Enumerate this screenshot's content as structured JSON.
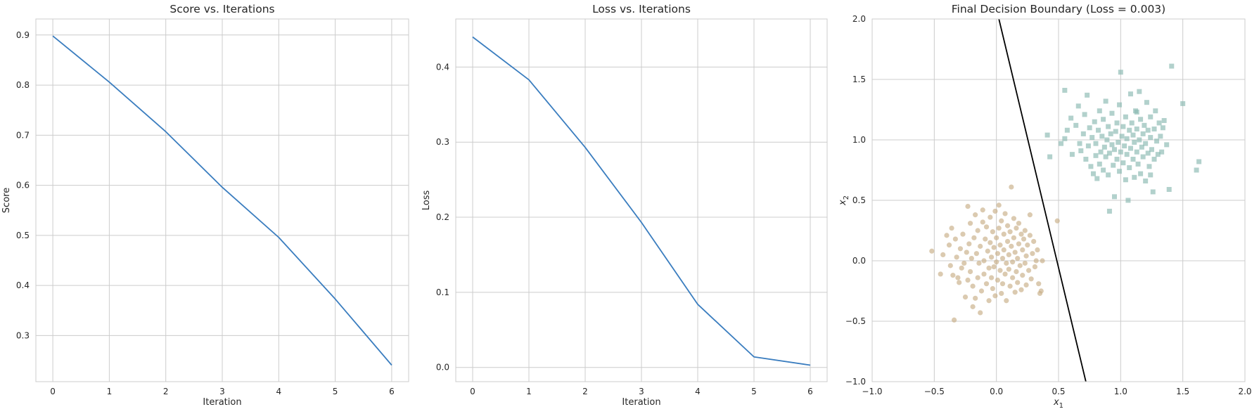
{
  "figure": {
    "background": "#ffffff",
    "grid_color": "#cccccc"
  },
  "chart_data": [
    {
      "type": "line",
      "title": "Score vs. Iterations",
      "xlabel": "Iteration",
      "ylabel": "Score",
      "grid": true,
      "xlim": [
        -0.3,
        6.3
      ],
      "ylim": [
        0.208,
        0.932
      ],
      "xticks": [
        0,
        1,
        2,
        3,
        4,
        5,
        6
      ],
      "xtick_labels": [
        "0",
        "1",
        "2",
        "3",
        "4",
        "5",
        "6"
      ],
      "yticks": [
        0.3,
        0.4,
        0.5,
        0.6,
        0.7,
        0.8,
        0.9
      ],
      "ytick_labels": [
        "0.3",
        "0.4",
        "0.5",
        "0.6",
        "0.7",
        "0.8",
        "0.9"
      ],
      "series": [
        {
          "color": "#3a7dbf",
          "x": [
            0,
            1,
            2,
            3,
            4,
            5,
            6
          ],
          "y": [
            0.898,
            0.806,
            0.707,
            0.596,
            0.496,
            0.373,
            0.241
          ]
        }
      ]
    },
    {
      "type": "line",
      "title": "Loss vs. Iterations",
      "xlabel": "Iteration",
      "ylabel": "Loss",
      "grid": true,
      "xlim": [
        -0.3,
        6.3
      ],
      "ylim": [
        -0.019,
        0.464
      ],
      "xticks": [
        0,
        1,
        2,
        3,
        4,
        5,
        6
      ],
      "xtick_labels": [
        "0",
        "1",
        "2",
        "3",
        "4",
        "5",
        "6"
      ],
      "yticks": [
        0.0,
        0.1,
        0.2,
        0.3,
        0.4
      ],
      "ytick_labels": [
        "0.0",
        "0.1",
        "0.2",
        "0.3",
        "0.4"
      ],
      "series": [
        {
          "color": "#3a7dbf",
          "x": [
            0,
            1,
            2,
            3,
            4,
            5,
            6
          ],
          "y": [
            0.44,
            0.383,
            0.293,
            0.193,
            0.084,
            0.014,
            0.003
          ]
        }
      ]
    },
    {
      "type": "scatter",
      "title": "Final Decision Boundary (Loss = 0.003)",
      "xlabel": "x",
      "xlabel_sub": "1",
      "ylabel": "x",
      "ylabel_sub": "2",
      "grid": true,
      "xlim": [
        -1.0,
        2.0
      ],
      "ylim": [
        -1.0,
        2.0
      ],
      "xticks": [
        -1.0,
        -0.5,
        0.0,
        0.5,
        1.0,
        1.5,
        2.0
      ],
      "xtick_labels": [
        "−1.0",
        "−0.5",
        "0.0",
        "0.5",
        "1.0",
        "1.5",
        "2.0"
      ],
      "yticks": [
        -1.0,
        -0.5,
        0.0,
        0.5,
        1.0,
        1.5,
        2.0
      ],
      "ytick_labels": [
        "−1.0",
        "−0.5",
        "0.0",
        "0.5",
        "1.0",
        "1.5",
        "2.0"
      ],
      "boundary": {
        "color": "#000000",
        "x": [
          0.02,
          0.72
        ],
        "y": [
          2.0,
          -1.0
        ]
      },
      "series": [
        {
          "marker": "circle",
          "color": "#c8ad86",
          "points": [
            [
              -0.52,
              0.08
            ],
            [
              -0.45,
              -0.11
            ],
            [
              -0.4,
              0.21
            ],
            [
              -0.38,
              0.13
            ],
            [
              -0.37,
              -0.04
            ],
            [
              -0.35,
              -0.12
            ],
            [
              -0.34,
              -0.49
            ],
            [
              -0.33,
              0.18
            ],
            [
              -0.32,
              0.03
            ],
            [
              -0.31,
              -0.14
            ],
            [
              -0.3,
              -0.18
            ],
            [
              -0.29,
              0.1
            ],
            [
              -0.28,
              -0.06
            ],
            [
              -0.27,
              0.22
            ],
            [
              -0.26,
              -0.02
            ],
            [
              -0.25,
              -0.3
            ],
            [
              -0.24,
              0.07
            ],
            [
              -0.23,
              -0.16
            ],
            [
              -0.23,
              0.45
            ],
            [
              -0.22,
              0.14
            ],
            [
              -0.21,
              0.31
            ],
            [
              -0.21,
              -0.09
            ],
            [
              -0.2,
              0.02
            ],
            [
              -0.19,
              -0.21
            ],
            [
              -0.18,
              0.19
            ],
            [
              -0.17,
              -0.31
            ],
            [
              -0.17,
              0.38
            ],
            [
              -0.16,
              0.06
            ],
            [
              -0.15,
              -0.14
            ],
            [
              -0.15,
              0.25
            ],
            [
              -0.14,
              -0.02
            ],
            [
              -0.13,
              -0.43
            ],
            [
              -0.13,
              0.12
            ],
            [
              -0.12,
              -0.25
            ],
            [
              -0.11,
              0.32
            ],
            [
              -0.11,
              0.42
            ],
            [
              -0.1,
              0.0
            ],
            [
              -0.1,
              -0.11
            ],
            [
              -0.09,
              0.18
            ],
            [
              -0.08,
              -0.19
            ],
            [
              -0.08,
              0.28
            ],
            [
              -0.07,
              0.08
            ],
            [
              -0.06,
              -0.06
            ],
            [
              -0.06,
              -0.33
            ],
            [
              -0.05,
              0.15
            ],
            [
              -0.05,
              0.36
            ],
            [
              -0.04,
              -0.14
            ],
            [
              -0.04,
              0.03
            ],
            [
              -0.03,
              -0.23
            ],
            [
              -0.03,
              0.24
            ],
            [
              -0.02,
              0.11
            ],
            [
              -0.02,
              -0.05
            ],
            [
              -0.01,
              0.41
            ],
            [
              -0.01,
              -0.29
            ],
            [
              0.0,
              0.19
            ],
            [
              0.0,
              -0.01
            ],
            [
              0.01,
              0.06
            ],
            [
              0.01,
              -0.16
            ],
            [
              0.02,
              0.27
            ],
            [
              0.02,
              0.46
            ],
            [
              0.03,
              -0.08
            ],
            [
              0.03,
              0.13
            ],
            [
              0.04,
              -0.27
            ],
            [
              0.04,
              0.33
            ],
            [
              0.05,
              0.02
            ],
            [
              0.05,
              -0.19
            ],
            [
              0.06,
              0.22
            ],
            [
              0.06,
              0.09
            ],
            [
              0.07,
              -0.11
            ],
            [
              0.07,
              0.39
            ],
            [
              0.08,
              -0.02
            ],
            [
              0.08,
              -0.33
            ],
            [
              0.09,
              0.16
            ],
            [
              0.09,
              0.29
            ],
            [
              0.1,
              -0.07
            ],
            [
              0.1,
              0.05
            ],
            [
              0.11,
              -0.21
            ],
            [
              0.11,
              0.24
            ],
            [
              0.12,
              0.61
            ],
            [
              0.12,
              0.12
            ],
            [
              0.13,
              -0.14
            ],
            [
              0.13,
              -0.01
            ],
            [
              0.14,
              0.35
            ],
            [
              0.14,
              0.19
            ],
            [
              0.15,
              -0.26
            ],
            [
              0.15,
              0.07
            ],
            [
              0.16,
              -0.09
            ],
            [
              0.16,
              0.27
            ],
            [
              0.17,
              0.02
            ],
            [
              0.17,
              -0.18
            ],
            [
              0.18,
              0.14
            ],
            [
              0.18,
              0.31
            ],
            [
              0.19,
              -0.04
            ],
            [
              0.2,
              0.22
            ],
            [
              0.2,
              -0.24
            ],
            [
              0.21,
              0.09
            ],
            [
              0.21,
              -0.12
            ],
            [
              0.22,
              0.18
            ],
            [
              0.23,
              -0.02
            ],
            [
              0.23,
              0.25
            ],
            [
              0.24,
              0.04
            ],
            [
              0.24,
              -0.2
            ],
            [
              0.25,
              0.13
            ],
            [
              0.26,
              -0.08
            ],
            [
              0.27,
              0.21
            ],
            [
              0.27,
              0.38
            ],
            [
              0.28,
              -0.15
            ],
            [
              0.29,
              0.06
            ],
            [
              0.3,
              0.16
            ],
            [
              0.31,
              -0.05
            ],
            [
              0.32,
              0.0
            ],
            [
              0.33,
              0.09
            ],
            [
              0.34,
              -0.19
            ],
            [
              0.35,
              -0.27
            ],
            [
              0.36,
              -0.25
            ],
            [
              0.37,
              0.0
            ],
            [
              0.49,
              0.33
            ],
            [
              -0.43,
              0.05
            ],
            [
              -0.36,
              0.27
            ],
            [
              -0.19,
              -0.38
            ]
          ]
        },
        {
          "marker": "square",
          "color": "#89b9b1",
          "points": [
            [
              0.41,
              1.04
            ],
            [
              0.43,
              0.86
            ],
            [
              0.52,
              0.97
            ],
            [
              0.55,
              1.01
            ],
            [
              0.57,
              1.08
            ],
            [
              0.55,
              1.41
            ],
            [
              0.6,
              1.18
            ],
            [
              0.61,
              0.88
            ],
            [
              0.64,
              1.12
            ],
            [
              0.66,
              1.28
            ],
            [
              0.67,
              0.97
            ],
            [
              0.68,
              0.91
            ],
            [
              0.7,
              1.05
            ],
            [
              0.71,
              1.21
            ],
            [
              0.72,
              0.84
            ],
            [
              0.73,
              1.37
            ],
            [
              0.74,
              0.95
            ],
            [
              0.75,
              1.1
            ],
            [
              0.76,
              0.78
            ],
            [
              0.77,
              1.02
            ],
            [
              0.78,
              0.72
            ],
            [
              0.79,
              1.15
            ],
            [
              0.8,
              0.87
            ],
            [
              0.8,
              0.97
            ],
            [
              0.81,
              0.68
            ],
            [
              0.82,
              1.08
            ],
            [
              0.83,
              1.24
            ],
            [
              0.83,
              0.8
            ],
            [
              0.84,
              0.9
            ],
            [
              0.85,
              1.03
            ],
            [
              0.86,
              0.75
            ],
            [
              0.86,
              1.17
            ],
            [
              0.87,
              0.94
            ],
            [
              0.88,
              0.86
            ],
            [
              0.88,
              1.32
            ],
            [
              0.89,
              1.0
            ],
            [
              0.9,
              0.71
            ],
            [
              0.9,
              1.11
            ],
            [
              0.91,
              0.41
            ],
            [
              0.91,
              0.89
            ],
            [
              0.92,
              1.05
            ],
            [
              0.93,
              0.96
            ],
            [
              0.93,
              1.22
            ],
            [
              0.94,
              0.79
            ],
            [
              0.95,
              0.53
            ],
            [
              0.95,
              0.92
            ],
            [
              0.96,
              1.07
            ],
            [
              0.97,
              0.84
            ],
            [
              0.97,
              1.14
            ],
            [
              0.98,
              0.98
            ],
            [
              0.99,
              1.29
            ],
            [
              0.99,
              0.74
            ],
            [
              1.0,
              1.56
            ],
            [
              1.0,
              0.9
            ],
            [
              1.01,
              1.03
            ],
            [
              1.02,
              0.81
            ],
            [
              1.02,
              1.11
            ],
            [
              1.03,
              0.95
            ],
            [
              1.04,
              0.67
            ],
            [
              1.04,
              1.19
            ],
            [
              1.05,
              0.88
            ],
            [
              1.05,
              1.01
            ],
            [
              1.06,
              0.5
            ],
            [
              1.07,
              1.08
            ],
            [
              1.07,
              0.77
            ],
            [
              1.08,
              1.38
            ],
            [
              1.08,
              0.93
            ],
            [
              1.09,
              1.14
            ],
            [
              1.1,
              0.84
            ],
            [
              1.1,
              1.04
            ],
            [
              1.11,
              0.69
            ],
            [
              1.11,
              0.98
            ],
            [
              1.12,
              1.24
            ],
            [
              1.13,
              0.9
            ],
            [
              1.13,
              1.09
            ],
            [
              1.14,
              0.8
            ],
            [
              1.15,
              1.4
            ],
            [
              1.15,
              1.0
            ],
            [
              1.16,
              0.72
            ],
            [
              1.16,
              1.17
            ],
            [
              1.17,
              0.94
            ],
            [
              1.18,
              1.05
            ],
            [
              1.18,
              0.86
            ],
            [
              1.19,
              1.12
            ],
            [
              1.2,
              0.66
            ],
            [
              1.2,
              0.97
            ],
            [
              1.21,
              1.31
            ],
            [
              1.22,
              0.89
            ],
            [
              1.22,
              1.08
            ],
            [
              1.23,
              0.78
            ],
            [
              1.24,
              1.02
            ],
            [
              1.24,
              1.19
            ],
            [
              1.25,
              0.92
            ],
            [
              1.26,
              0.57
            ],
            [
              1.27,
              1.09
            ],
            [
              1.27,
              0.84
            ],
            [
              1.28,
              1.24
            ],
            [
              1.29,
              0.99
            ],
            [
              1.3,
              0.88
            ],
            [
              1.31,
              1.14
            ],
            [
              1.32,
              1.03
            ],
            [
              1.33,
              0.9
            ],
            [
              1.34,
              1.1
            ],
            [
              1.35,
              1.16
            ],
            [
              1.37,
              0.96
            ],
            [
              1.39,
              0.59
            ],
            [
              1.41,
              1.61
            ],
            [
              1.5,
              1.3
            ],
            [
              1.61,
              0.75
            ],
            [
              1.63,
              0.82
            ],
            [
              1.24,
              0.71
            ],
            [
              1.13,
              1.23
            ]
          ]
        }
      ]
    }
  ]
}
